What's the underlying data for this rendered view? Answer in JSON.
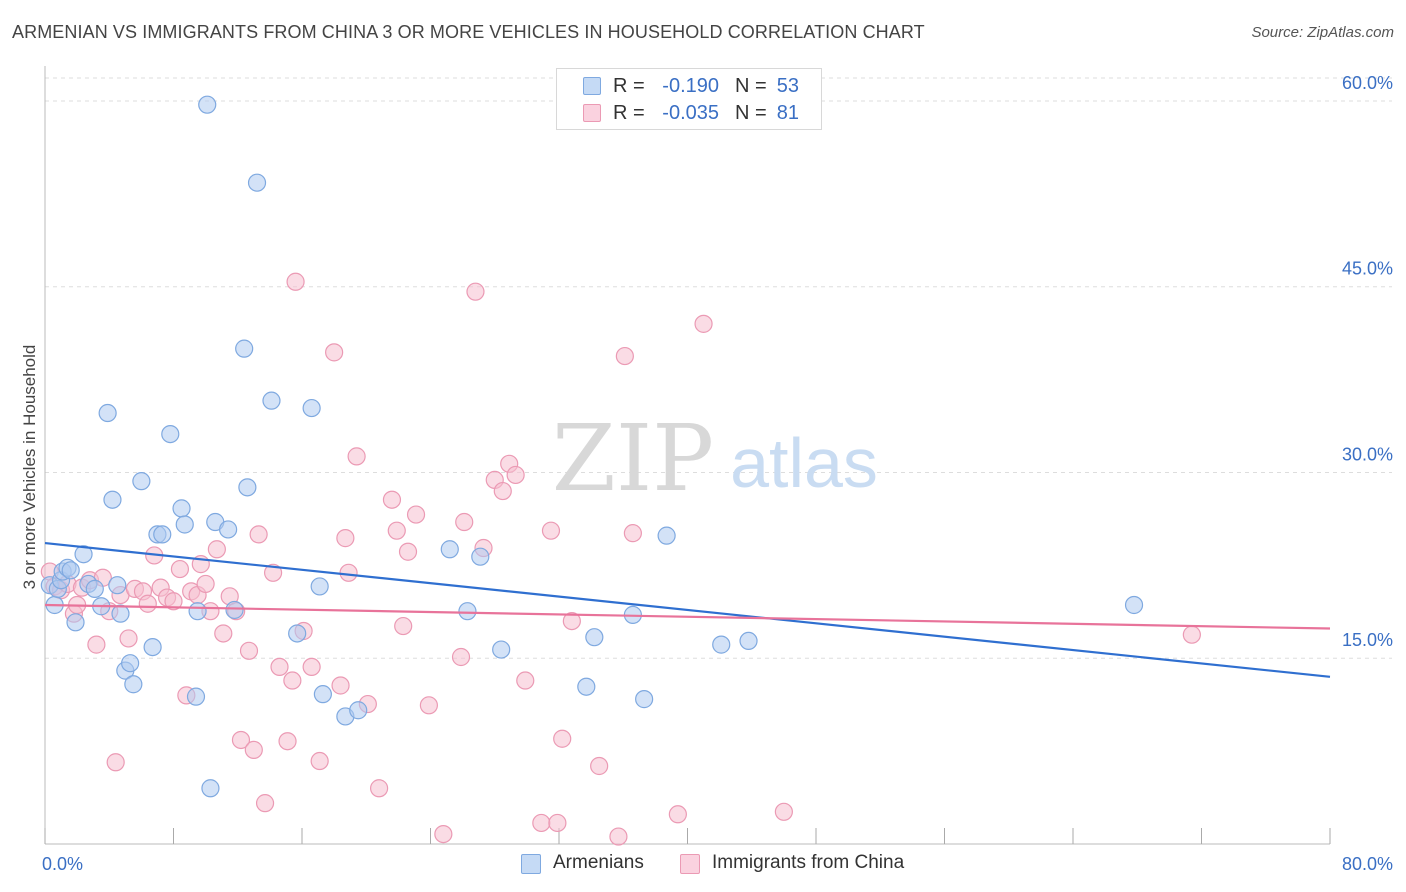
{
  "title": "ARMENIAN VS IMMIGRANTS FROM CHINA 3 OR MORE VEHICLES IN HOUSEHOLD CORRELATION CHART",
  "source": "Source: ZipAtlas.com",
  "watermark": {
    "zip": "ZIP",
    "atlas": "atlas"
  },
  "legend": {
    "rows": [
      {
        "r_label": "R =",
        "r_value": "-0.190",
        "n_label": "N =",
        "n_value": "53"
      },
      {
        "r_label": "R =",
        "r_value": "-0.035",
        "n_label": "N =",
        "n_value": "81"
      }
    ]
  },
  "bottom_legend": {
    "armenians": "Armenians",
    "china": "Immigrants from China"
  },
  "colors": {
    "armenian_fill": "#aecbf0",
    "armenian_stroke": "#7fa9e0",
    "armenian_line": "#2f6fd0",
    "china_fill": "#f6bfd0",
    "china_stroke": "#eb9ab4",
    "china_line": "#e8739a",
    "axis_label": "#3a6fc4",
    "grid": "#dddddd"
  },
  "chart_data": {
    "type": "scatter",
    "title": "ARMENIAN VS IMMIGRANTS FROM CHINA 3 OR MORE VEHICLES IN HOUSEHOLD CORRELATION CHART",
    "xlabel": "",
    "ylabel": "3 or more Vehicles in Household",
    "xlim": [
      0,
      80
    ],
    "ylim": [
      0,
      62.5
    ],
    "x_tick_labels": [
      {
        "value": 0,
        "label": "0.0%"
      },
      {
        "value": 80,
        "label": "80.0%"
      }
    ],
    "x_minor_ticks": [
      0,
      8,
      16,
      24,
      32,
      40,
      48,
      56,
      64,
      72,
      80
    ],
    "y_ticks": [
      {
        "value": 15,
        "label": "15.0%"
      },
      {
        "value": 30,
        "label": "30.0%"
      },
      {
        "value": 45,
        "label": "45.0%"
      },
      {
        "value": 60,
        "label": "60.0%"
      }
    ],
    "grid": true,
    "series": [
      {
        "name": "Armenians",
        "r": -0.19,
        "n": 53,
        "trend": {
          "x0": 0,
          "y0": 24.3,
          "x1": 80,
          "y1": 13.5
        },
        "points": [
          [
            0.3,
            20.9
          ],
          [
            0.6,
            19.3
          ],
          [
            0.8,
            20.6
          ],
          [
            1.0,
            21.3
          ],
          [
            1.1,
            22.0
          ],
          [
            1.4,
            22.3
          ],
          [
            1.6,
            22.1
          ],
          [
            1.9,
            17.9
          ],
          [
            2.4,
            23.4
          ],
          [
            2.7,
            21.0
          ],
          [
            3.1,
            20.6
          ],
          [
            3.5,
            19.2
          ],
          [
            3.9,
            34.8
          ],
          [
            4.2,
            27.8
          ],
          [
            4.5,
            20.9
          ],
          [
            4.7,
            18.6
          ],
          [
            5.0,
            14.0
          ],
          [
            5.3,
            14.6
          ],
          [
            5.5,
            12.9
          ],
          [
            6.0,
            29.3
          ],
          [
            6.7,
            15.9
          ],
          [
            7.0,
            25.0
          ],
          [
            7.3,
            25.0
          ],
          [
            7.8,
            33.1
          ],
          [
            8.5,
            27.1
          ],
          [
            8.7,
            25.8
          ],
          [
            9.4,
            11.9
          ],
          [
            9.5,
            18.8
          ],
          [
            10.1,
            59.7
          ],
          [
            10.3,
            4.5
          ],
          [
            10.6,
            26.0
          ],
          [
            11.4,
            25.4
          ],
          [
            11.8,
            18.9
          ],
          [
            12.4,
            40.0
          ],
          [
            12.6,
            28.8
          ],
          [
            13.2,
            53.4
          ],
          [
            14.1,
            35.8
          ],
          [
            15.7,
            17.0
          ],
          [
            16.6,
            35.2
          ],
          [
            17.1,
            20.8
          ],
          [
            17.3,
            12.1
          ],
          [
            18.7,
            10.3
          ],
          [
            19.5,
            10.8
          ],
          [
            25.2,
            23.8
          ],
          [
            26.3,
            18.8
          ],
          [
            27.1,
            23.2
          ],
          [
            28.4,
            15.7
          ],
          [
            33.7,
            12.7
          ],
          [
            34.2,
            16.7
          ],
          [
            36.6,
            18.5
          ],
          [
            37.3,
            11.7
          ],
          [
            38.7,
            24.9
          ],
          [
            42.1,
            16.1
          ],
          [
            43.8,
            16.4
          ],
          [
            67.8,
            19.3
          ]
        ]
      },
      {
        "name": "Immigrants from China",
        "r": -0.035,
        "n": 81,
        "trend": {
          "x0": 0,
          "y0": 19.3,
          "x1": 80,
          "y1": 17.4
        },
        "points": [
          [
            0.3,
            22.0
          ],
          [
            0.6,
            20.8
          ],
          [
            1.0,
            20.5
          ],
          [
            1.4,
            21.0
          ],
          [
            1.8,
            18.6
          ],
          [
            2.0,
            19.3
          ],
          [
            2.3,
            20.7
          ],
          [
            2.8,
            21.3
          ],
          [
            3.2,
            16.1
          ],
          [
            3.6,
            21.5
          ],
          [
            4.0,
            18.8
          ],
          [
            4.4,
            6.6
          ],
          [
            4.7,
            20.1
          ],
          [
            5.2,
            16.6
          ],
          [
            5.6,
            20.6
          ],
          [
            6.1,
            20.4
          ],
          [
            6.4,
            19.4
          ],
          [
            6.8,
            23.3
          ],
          [
            7.2,
            20.7
          ],
          [
            7.6,
            19.9
          ],
          [
            8.0,
            19.6
          ],
          [
            8.4,
            22.2
          ],
          [
            8.8,
            12.0
          ],
          [
            9.1,
            20.4
          ],
          [
            9.5,
            20.1
          ],
          [
            9.7,
            22.6
          ],
          [
            10.0,
            21.0
          ],
          [
            10.3,
            18.8
          ],
          [
            10.7,
            23.8
          ],
          [
            11.1,
            17.0
          ],
          [
            11.5,
            20.0
          ],
          [
            11.9,
            18.8
          ],
          [
            12.2,
            8.4
          ],
          [
            12.7,
            15.6
          ],
          [
            13.0,
            7.6
          ],
          [
            13.3,
            25.0
          ],
          [
            13.7,
            3.3
          ],
          [
            14.2,
            21.9
          ],
          [
            14.6,
            14.3
          ],
          [
            15.1,
            8.3
          ],
          [
            15.4,
            13.2
          ],
          [
            15.6,
            45.4
          ],
          [
            16.1,
            17.2
          ],
          [
            16.6,
            14.3
          ],
          [
            17.1,
            6.7
          ],
          [
            18.0,
            39.7
          ],
          [
            18.4,
            12.8
          ],
          [
            18.7,
            24.7
          ],
          [
            18.9,
            21.9
          ],
          [
            19.4,
            31.3
          ],
          [
            20.1,
            11.3
          ],
          [
            20.8,
            4.5
          ],
          [
            21.6,
            27.8
          ],
          [
            21.9,
            25.3
          ],
          [
            22.3,
            17.6
          ],
          [
            22.6,
            23.6
          ],
          [
            23.1,
            26.6
          ],
          [
            23.9,
            11.2
          ],
          [
            24.8,
            0.8
          ],
          [
            25.9,
            15.1
          ],
          [
            26.1,
            26.0
          ],
          [
            26.8,
            44.6
          ],
          [
            27.3,
            23.9
          ],
          [
            28.0,
            29.4
          ],
          [
            28.5,
            28.5
          ],
          [
            28.9,
            30.7
          ],
          [
            29.3,
            29.8
          ],
          [
            29.9,
            13.2
          ],
          [
            30.9,
            1.7
          ],
          [
            31.5,
            25.3
          ],
          [
            31.9,
            1.7
          ],
          [
            32.2,
            8.5
          ],
          [
            32.8,
            18.0
          ],
          [
            34.5,
            6.3
          ],
          [
            35.7,
            0.6
          ],
          [
            36.1,
            39.4
          ],
          [
            36.6,
            25.1
          ],
          [
            39.4,
            2.4
          ],
          [
            41.0,
            42.0
          ],
          [
            46.0,
            2.6
          ],
          [
            71.4,
            16.9
          ]
        ]
      }
    ]
  }
}
